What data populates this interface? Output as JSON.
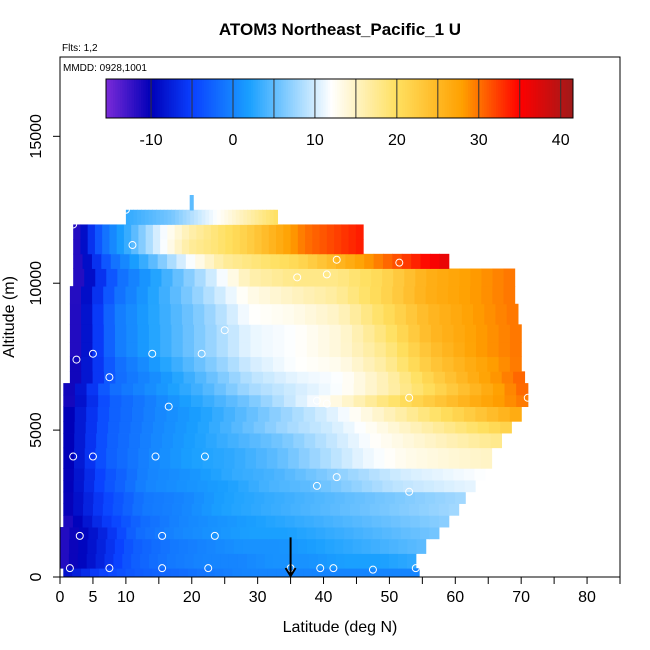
{
  "chart_data": {
    "type": "heatmap",
    "title": "ATOM3 Northeast_Pacific_1 U",
    "annotations": {
      "flights": "Flts: 1,2",
      "dates": "MMDD: 0928,1001"
    },
    "xlabel": "Latitude (deg N)",
    "ylabel": "Altitude (m)",
    "xlim": [
      0,
      85
    ],
    "ylim": [
      0,
      17700
    ],
    "x_ticks": [
      0,
      5,
      10,
      20,
      30,
      40,
      50,
      60,
      70,
      80
    ],
    "x_minor_ticks": [
      15,
      25,
      35,
      45,
      55,
      65,
      75,
      85
    ],
    "y_ticks": [
      0,
      5000,
      10000,
      15000
    ],
    "colorbar": {
      "min": -15.5,
      "max": 41.5,
      "ticks": [
        -10,
        0,
        10,
        20,
        30,
        40
      ],
      "lines": [
        -10,
        -5,
        0,
        5,
        10,
        15,
        20,
        25,
        30,
        35,
        40
      ],
      "colors": [
        "#7b2bd8",
        "#0000b8",
        "#0a40ff",
        "#1aa0ff",
        "#ffffff",
        "#ffe060",
        "#ffa000",
        "#ff0000",
        "#a01a1a"
      ],
      "color_stops": [
        -15.5,
        -10,
        -5,
        2,
        12,
        20,
        28,
        35,
        41.5
      ]
    },
    "layers": [
      {
        "y0": 0,
        "y1": 300,
        "x0": 0.5,
        "x1": 54.5,
        "v": [
          -9,
          -5,
          -3,
          -2,
          -1,
          0,
          0,
          0,
          0,
          0,
          0
        ]
      },
      {
        "y0": 300,
        "y1": 800,
        "x0": 0,
        "x1": 54,
        "v": [
          -12,
          -8,
          -3,
          -1,
          0,
          0,
          1,
          1,
          2,
          2,
          3
        ]
      },
      {
        "y0": 800,
        "y1": 1300,
        "x0": 0,
        "x1": 55.5,
        "v": [
          -12,
          -8,
          -3,
          -1,
          0,
          1,
          1,
          2,
          3,
          4,
          5
        ]
      },
      {
        "y0": 1300,
        "y1": 1700,
        "x0": 0,
        "x1": 57.5,
        "v": [
          -12,
          -8,
          -2,
          0,
          1,
          2,
          2,
          3,
          4,
          5,
          6
        ]
      },
      {
        "y0": 1700,
        "y1": 2100,
        "x0": 0.5,
        "x1": 59,
        "v": [
          -12,
          -6,
          -2,
          0,
          1,
          2,
          3,
          4,
          5,
          6,
          7
        ]
      },
      {
        "y0": 2100,
        "y1": 2500,
        "x0": 0.5,
        "x1": 60.5,
        "v": [
          -11,
          -5,
          -1,
          0,
          2,
          3,
          4,
          5,
          6,
          7,
          8
        ]
      },
      {
        "y0": 2500,
        "y1": 2900,
        "x0": 0.5,
        "x1": 61.5,
        "v": [
          -11,
          -5,
          -1,
          0,
          2,
          3,
          4,
          5,
          6,
          7,
          8
        ]
      },
      {
        "y0": 2900,
        "y1": 3300,
        "x0": 0.5,
        "x1": 63,
        "v": [
          -11,
          -4,
          0,
          1,
          2,
          4,
          5,
          7,
          9,
          10,
          11
        ]
      },
      {
        "y0": 3300,
        "y1": 3700,
        "x0": 0.5,
        "x1": 64.5,
        "v": [
          -11,
          -4,
          0,
          1,
          3,
          4,
          6,
          8,
          10,
          11,
          12
        ]
      },
      {
        "y0": 3700,
        "y1": 4400,
        "x0": 0.5,
        "x1": 65.5,
        "v": [
          -11,
          -3,
          0,
          2,
          3,
          5,
          8,
          11,
          13,
          14,
          15
        ]
      },
      {
        "y0": 4400,
        "y1": 4900,
        "x0": 0.5,
        "x1": 67,
        "v": [
          -11,
          -3,
          0,
          2,
          4,
          6,
          9,
          12,
          14,
          16,
          18
        ]
      },
      {
        "y0": 4900,
        "y1": 5300,
        "x0": 0.5,
        "x1": 68.5,
        "v": [
          -11,
          -3,
          0,
          2,
          5,
          8,
          10,
          13,
          16,
          19,
          22
        ]
      },
      {
        "y0": 5300,
        "y1": 5800,
        "x0": 0.5,
        "x1": 70,
        "v": [
          -11,
          -3,
          0,
          2,
          5,
          8,
          11,
          15,
          19,
          23,
          27
        ]
      },
      {
        "y0": 5800,
        "y1": 6200,
        "x0": 0.5,
        "x1": 71,
        "v": [
          -12,
          -3,
          0,
          3,
          6,
          10,
          14,
          19,
          23,
          27,
          30
        ]
      },
      {
        "y0": 6200,
        "y1": 6600,
        "x0": 0.5,
        "x1": 71,
        "v": [
          -12,
          -2,
          1,
          4,
          8,
          10,
          12,
          16,
          21,
          26,
          31
        ]
      },
      {
        "y0": 6600,
        "y1": 7000,
        "x0": 1.5,
        "x1": 70.5,
        "v": [
          -12,
          -2,
          1,
          5,
          9,
          11,
          12,
          16,
          22,
          27,
          31
        ]
      },
      {
        "y0": 7000,
        "y1": 7500,
        "x0": 1.5,
        "x1": 70,
        "v": [
          -12,
          -2,
          2,
          6,
          10,
          12,
          13,
          17,
          23,
          27,
          30
        ]
      },
      {
        "y0": 7500,
        "y1": 8000,
        "x0": 1.5,
        "x1": 70,
        "v": [
          -13,
          -1,
          3,
          7,
          11,
          12,
          14,
          18,
          24,
          28,
          30
        ]
      },
      {
        "y0": 8000,
        "y1": 8600,
        "x0": 1.5,
        "x1": 70,
        "v": [
          -13,
          -1,
          3,
          7,
          11,
          12,
          14,
          19,
          25,
          28,
          30
        ]
      },
      {
        "y0": 8600,
        "y1": 9300,
        "x0": 1.5,
        "x1": 69.5,
        "v": [
          -13,
          -1,
          3,
          7,
          12,
          13,
          15,
          20,
          25,
          28,
          30
        ]
      },
      {
        "y0": 9300,
        "y1": 9900,
        "x0": 1.5,
        "x1": 69,
        "v": [
          -13,
          -2,
          3,
          8,
          13,
          15,
          17,
          21,
          26,
          28,
          30
        ]
      },
      {
        "y0": 9900,
        "y1": 10500,
        "x0": 2,
        "x1": 69,
        "v": [
          -13,
          -2,
          3,
          9,
          16,
          18,
          18,
          21,
          26,
          28,
          30
        ]
      },
      {
        "y0": 10500,
        "y1": 11000,
        "x0": 2,
        "x1": 59,
        "v": [
          -13,
          -2,
          4,
          11,
          17,
          19,
          21,
          25,
          29,
          33,
          37
        ]
      },
      {
        "y0": 11000,
        "y1": 11500,
        "x0": 2,
        "x1": 46,
        "v": [
          -13,
          -2,
          4,
          11,
          17,
          19,
          22,
          26,
          30,
          32,
          34
        ]
      },
      {
        "y0": 11500,
        "y1": 12000,
        "x0": 2,
        "x1": 46,
        "v": [
          -13,
          -2,
          4,
          11,
          16,
          19,
          22,
          26,
          30,
          32,
          34
        ]
      },
      {
        "y0": 12000,
        "y1": 12500,
        "x0": 10,
        "x1": 33,
        "v": [
          3,
          4,
          5,
          6,
          8,
          10,
          12,
          14,
          16,
          18,
          20
        ]
      },
      {
        "y0": 12500,
        "y1": 13000,
        "x0": 19.7,
        "x1": 20.2,
        "v": [
          5,
          5
        ]
      }
    ],
    "points": [
      [
        1.5,
        300
      ],
      [
        3,
        1400
      ],
      [
        7.5,
        300
      ],
      [
        15.5,
        300
      ],
      [
        22.5,
        300
      ],
      [
        35,
        300
      ],
      [
        39.5,
        300
      ],
      [
        41.5,
        300
      ],
      [
        47.5,
        250
      ],
      [
        54,
        300
      ],
      [
        15.5,
        1400
      ],
      [
        23.5,
        1400
      ],
      [
        2,
        4100
      ],
      [
        5,
        4100
      ],
      [
        14.5,
        4100
      ],
      [
        22,
        4100
      ],
      [
        16.5,
        5800
      ],
      [
        39,
        6000
      ],
      [
        40.5,
        5900
      ],
      [
        53,
        6100
      ],
      [
        71,
        6100
      ],
      [
        2.5,
        7400
      ],
      [
        5,
        7600
      ],
      [
        14,
        7600
      ],
      [
        21.5,
        7600
      ],
      [
        7.5,
        6800
      ],
      [
        25,
        8400
      ],
      [
        36,
        10200
      ],
      [
        40.5,
        10300
      ],
      [
        42,
        10800
      ],
      [
        51.5,
        10700
      ],
      [
        69,
        10900
      ],
      [
        11,
        11300
      ],
      [
        2,
        12000
      ],
      [
        10,
        12500
      ],
      [
        39,
        3100
      ],
      [
        42,
        3400
      ],
      [
        53,
        2900
      ]
    ],
    "marker": {
      "x": 35,
      "y_top": 600,
      "y_bottom": 0
    }
  }
}
